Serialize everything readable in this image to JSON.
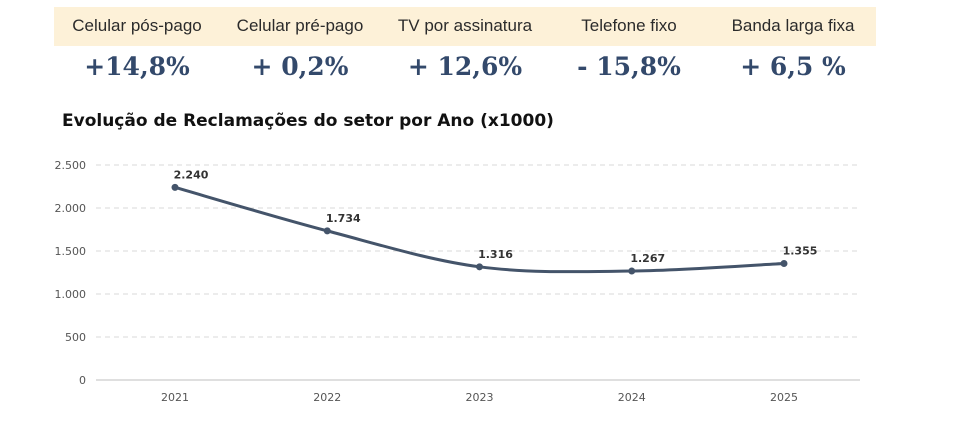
{
  "header": {
    "categories": [
      {
        "label": "Celular pós-pago",
        "value": "+14,8%"
      },
      {
        "label": "Celular pré-pago",
        "value": "+ 0,2%"
      },
      {
        "label": "TV por assinatura",
        "value": "+ 12,6%"
      },
      {
        "label": "Telefone fixo",
        "value": "- 15,8%"
      },
      {
        "label": "Banda larga fixa",
        "value": "+ 6,5 %"
      }
    ]
  },
  "colors": {
    "header_bg": "#fdf1d8",
    "value_text": "#33496b",
    "line": "#44546a",
    "grid": "#d9d9d9"
  },
  "chart_data": {
    "type": "line",
    "title": "Evolução de Reclamações do setor por Ano (x1000)",
    "categories": [
      "2021",
      "2022",
      "2023",
      "2024",
      "2025"
    ],
    "values": [
      2240,
      1734,
      1316,
      1267,
      1355
    ],
    "data_labels": [
      "2.240",
      "1.734",
      "1.316",
      "1.267",
      "1.355"
    ],
    "y_ticks": [
      0,
      500,
      1000,
      1500,
      2000,
      2500
    ],
    "y_tick_labels": [
      "0",
      "500",
      "1.000",
      "1.500",
      "2.000",
      "2.500"
    ],
    "ylim": [
      0,
      2500
    ],
    "grid": true,
    "xlabel": "",
    "ylabel": ""
  }
}
